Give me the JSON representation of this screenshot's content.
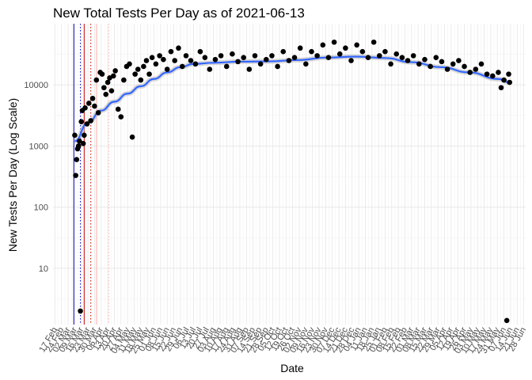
{
  "chart_data": {
    "type": "scatter",
    "title": "New Total Tests Per Day as of 2021-06-13",
    "xlabel": "Date",
    "ylabel": "New Tests Per Day (Log Scale)",
    "y_scale": "log10",
    "y_ticks": [
      10,
      100,
      1000,
      10000
    ],
    "y_tick_labels": [
      "10",
      "100",
      "1000",
      "10000"
    ],
    "ylim": [
      1.2,
      100000
    ],
    "xlim": [
      "2020-02-15",
      "2021-06-30"
    ],
    "grid": "on",
    "x_tick_labels": [
      "17 Feb",
      "24 Feb",
      "02 Mar",
      "09 Mar",
      "16 Mar",
      "23 Mar",
      "30 Mar",
      "06 Apr",
      "13 Apr",
      "20 Apr",
      "27 Apr",
      "04 May",
      "11 May",
      "18 May",
      "25 May",
      "01 Jun",
      "08 Jun",
      "15 Jun",
      "22 Jun",
      "29 Jun",
      "06 Jul",
      "13 Jul",
      "20 Jul",
      "27 Jul",
      "03 Aug",
      "10 Aug",
      "17 Aug",
      "24 Aug",
      "31 Aug",
      "07 Sep",
      "14 Sep",
      "21 Sep",
      "28 Sep",
      "05 Oct",
      "12 Oct",
      "19 Oct",
      "26 Oct",
      "02 Nov",
      "09 Nov",
      "16 Nov",
      "23 Nov",
      "30 Nov",
      "07 Dec",
      "14 Dec",
      "21 Dec",
      "28 Dec",
      "04 Jan",
      "11 Jan",
      "18 Jan",
      "25 Jan",
      "01 Feb",
      "08 Feb",
      "15 Feb",
      "22 Feb",
      "01 Mar",
      "08 Mar",
      "15 Mar",
      "22 Mar",
      "29 Mar",
      "05 Apr",
      "12 Apr",
      "19 Apr",
      "26 Apr",
      "03 May",
      "10 May",
      "17 May",
      "24 May",
      "31 May",
      "07 Jun",
      "14 Jun",
      "21 Jun",
      "28 Jun"
    ],
    "reference_lines": [
      {
        "date": "2020-03-08",
        "color": "#0000cc",
        "style": "solid"
      },
      {
        "date": "2020-03-15",
        "color": "#0000cc",
        "style": "dotted"
      },
      {
        "date": "2020-03-19",
        "color": "#cc0000",
        "style": "solid"
      },
      {
        "date": "2020-03-26",
        "color": "#cc0000",
        "style": "dotted"
      },
      {
        "date": "2020-04-01",
        "color": "#ffb0b0",
        "style": "solid"
      },
      {
        "date": "2020-04-14",
        "color": "#ffb0b0",
        "style": "dotted"
      }
    ],
    "series": [
      {
        "type": "points",
        "color": "#000000",
        "x": [
          "2020-03-09",
          "2020-03-10",
          "2020-03-11",
          "2020-03-12",
          "2020-03-13",
          "2020-03-14",
          "2020-03-15",
          "2020-03-16",
          "2020-03-17",
          "2020-03-18",
          "2020-03-19",
          "2020-03-20",
          "2020-03-22",
          "2020-03-24",
          "2020-03-26",
          "2020-03-28",
          "2020-03-30",
          "2020-04-01",
          "2020-04-03",
          "2020-04-05",
          "2020-04-07",
          "2020-04-09",
          "2020-04-11",
          "2020-04-13",
          "2020-04-15",
          "2020-04-17",
          "2020-04-19",
          "2020-04-21",
          "2020-04-24",
          "2020-04-27",
          "2020-04-30",
          "2020-05-03",
          "2020-05-06",
          "2020-05-09",
          "2020-05-12",
          "2020-05-15",
          "2020-05-18",
          "2020-05-21",
          "2020-05-24",
          "2020-05-27",
          "2020-05-30",
          "2020-06-03",
          "2020-06-07",
          "2020-06-11",
          "2020-06-15",
          "2020-06-19",
          "2020-06-23",
          "2020-06-27",
          "2020-07-01",
          "2020-07-05",
          "2020-07-10",
          "2020-07-15",
          "2020-07-20",
          "2020-07-25",
          "2020-07-30",
          "2020-08-05",
          "2020-08-11",
          "2020-08-17",
          "2020-08-23",
          "2020-08-29",
          "2020-09-04",
          "2020-09-10",
          "2020-09-16",
          "2020-09-22",
          "2020-09-28",
          "2020-10-04",
          "2020-10-10",
          "2020-10-16",
          "2020-10-22",
          "2020-10-28",
          "2020-11-03",
          "2020-11-09",
          "2020-11-15",
          "2020-11-21",
          "2020-11-27",
          "2020-12-03",
          "2020-12-09",
          "2020-12-15",
          "2020-12-21",
          "2020-12-27",
          "2021-01-02",
          "2021-01-08",
          "2021-01-14",
          "2021-01-20",
          "2021-01-26",
          "2021-02-01",
          "2021-02-07",
          "2021-02-13",
          "2021-02-19",
          "2021-02-25",
          "2021-03-03",
          "2021-03-09",
          "2021-03-15",
          "2021-03-21",
          "2021-03-27",
          "2021-04-02",
          "2021-04-08",
          "2021-04-14",
          "2021-04-20",
          "2021-04-26",
          "2021-05-02",
          "2021-05-08",
          "2021-05-14",
          "2021-05-20",
          "2021-05-26",
          "2021-06-01",
          "2021-06-04",
          "2021-06-07",
          "2021-06-10",
          "2021-06-12",
          "2021-06-13"
        ],
        "y": [
          1500,
          330,
          600,
          900,
          1000,
          1200,
          2,
          2500,
          3800,
          1100,
          1500,
          4200,
          2300,
          5000,
          2600,
          6000,
          4500,
          12000,
          3500,
          16000,
          15000,
          9000,
          7000,
          11000,
          13000,
          8000,
          14000,
          17000,
          4000,
          3000,
          12000,
          20000,
          22000,
          1400,
          15000,
          18000,
          12000,
          20000,
          25000,
          15000,
          28000,
          22000,
          30000,
          26000,
          18000,
          35000,
          25000,
          40000,
          20000,
          30000,
          25000,
          22000,
          35000,
          28000,
          18000,
          26000,
          30000,
          20000,
          32000,
          24000,
          28000,
          18000,
          30000,
          22000,
          26000,
          30000,
          20000,
          35000,
          25000,
          28000,
          40000,
          22000,
          35000,
          30000,
          45000,
          28000,
          50000,
          32000,
          40000,
          25000,
          45000,
          35000,
          28000,
          50000,
          30000,
          35000,
          22000,
          32000,
          28000,
          25000,
          30000,
          22000,
          26000,
          20000,
          28000,
          24000,
          18000,
          22000,
          25000,
          20000,
          16000,
          18000,
          22000,
          15000,
          14000,
          16000,
          9000,
          12000,
          1.4,
          15000,
          11000
        ]
      },
      {
        "type": "smooth",
        "color": "#3366ff",
        "x": [
          "2020-03-09",
          "2020-03-23",
          "2020-04-06",
          "2020-04-20",
          "2020-05-04",
          "2020-05-18",
          "2020-06-01",
          "2020-06-15",
          "2020-06-29",
          "2020-07-13",
          "2020-08-03",
          "2020-09-01",
          "2020-10-01",
          "2020-11-01",
          "2020-12-01",
          "2021-01-01",
          "2021-02-01",
          "2021-03-01",
          "2021-04-01",
          "2021-05-01",
          "2021-06-01",
          "2021-06-13"
        ],
        "y": [
          1200,
          2400,
          3800,
          5300,
          7200,
          9500,
          12500,
          16000,
          19500,
          22000,
          23000,
          24000,
          24200,
          25500,
          28000,
          29000,
          27500,
          23500,
          19500,
          16000,
          12500,
          11000
        ]
      }
    ]
  }
}
